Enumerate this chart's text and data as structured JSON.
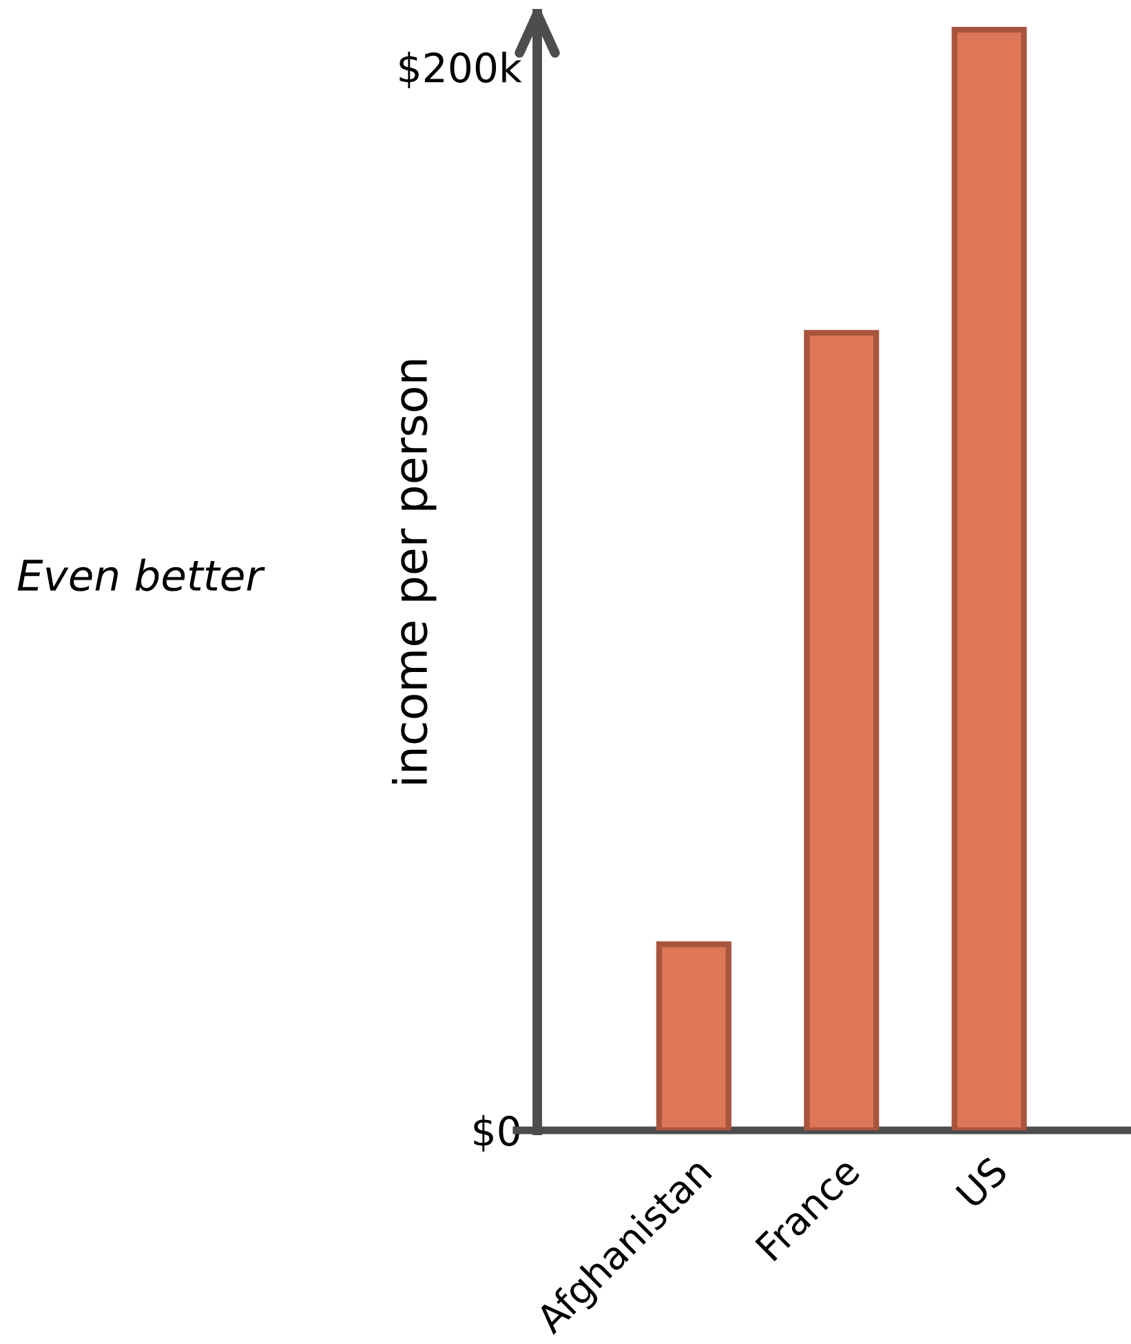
{
  "chart_data": {
    "type": "bar",
    "ylabel": "income per person",
    "categories": [
      "Afghanistan",
      "France",
      "US"
    ],
    "values": [
      35000,
      150000,
      207000
    ],
    "color": "#dd7758",
    "ylim": [
      0,
      210000
    ],
    "yticks": [
      {
        "value": 0,
        "label": "$0"
      },
      {
        "value": 200000,
        "label": "$200k"
      }
    ],
    "grid": false,
    "annotations": [
      "Even better"
    ]
  }
}
